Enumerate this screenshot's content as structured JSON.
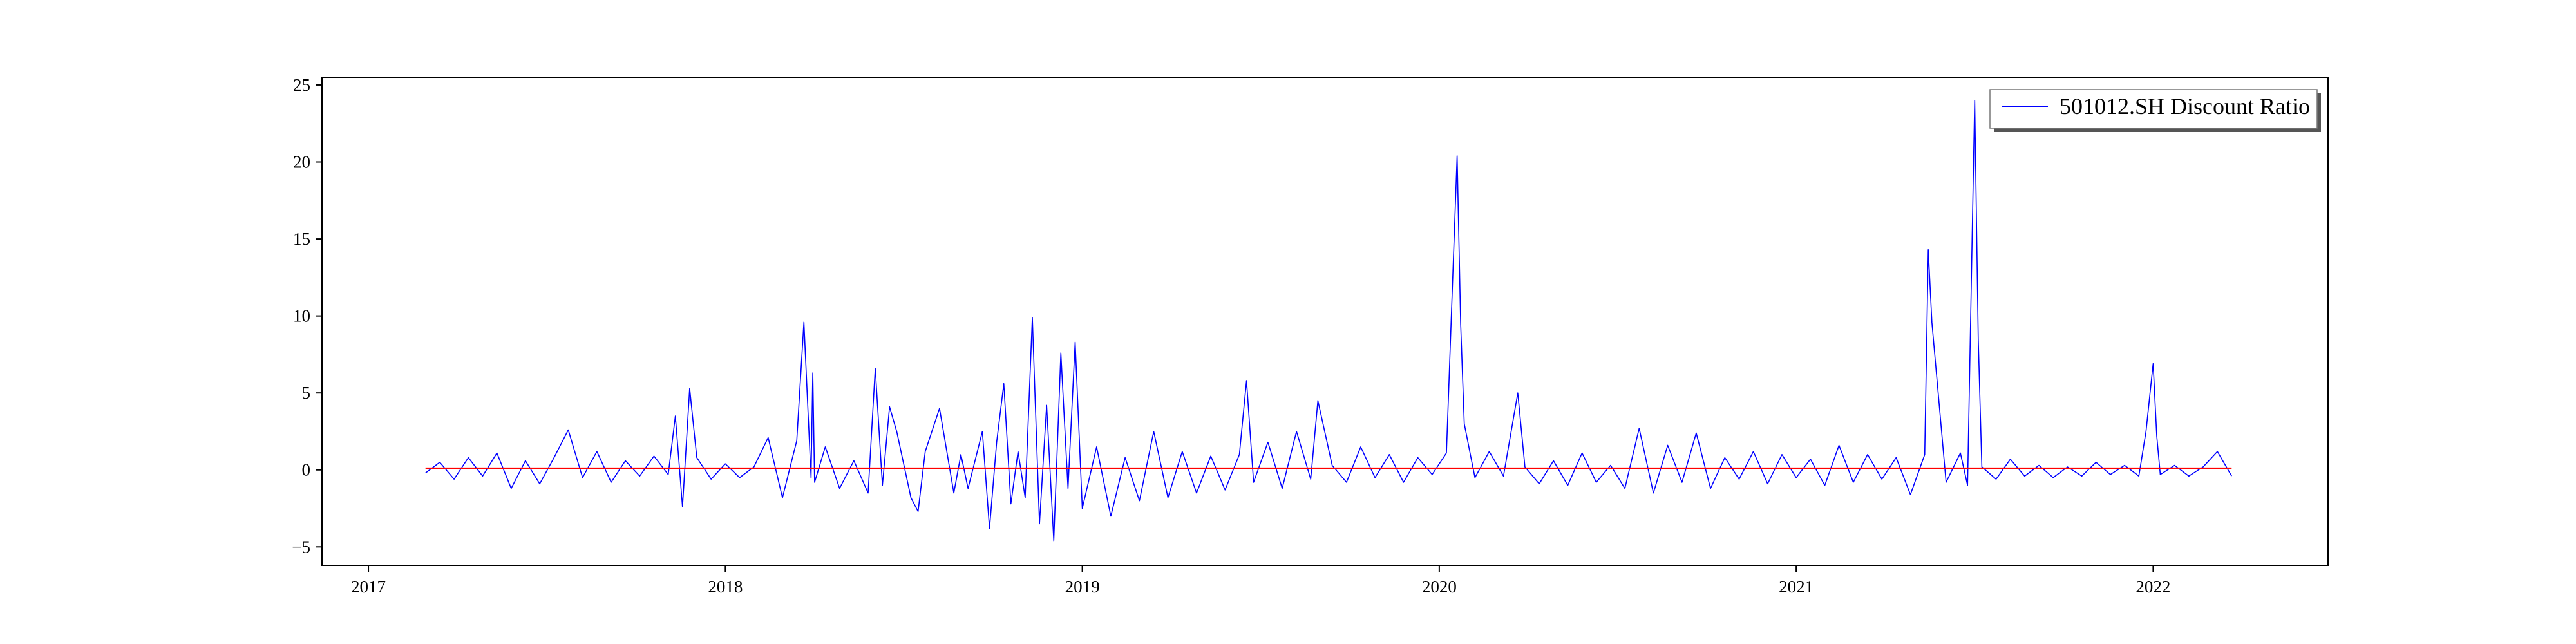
{
  "chart_data": {
    "type": "line",
    "title": "",
    "xlabel": "",
    "ylabel": "",
    "x_ticks": [
      "2017",
      "2018",
      "2019",
      "2020",
      "2021",
      "2022"
    ],
    "x_tick_years": [
      2017,
      2018,
      2019,
      2020,
      2021,
      2022
    ],
    "y_ticks": [
      -5,
      0,
      5,
      10,
      15,
      20,
      25
    ],
    "xlim": [
      2016.87,
      2022.49
    ],
    "ylim": [
      -6.2,
      25.5
    ],
    "grid": false,
    "legend": {
      "position": "top-right",
      "entries": [
        "501012.SH Discount Ratio"
      ]
    },
    "series": [
      {
        "name": "501012.SH Discount Ratio",
        "color": "#0000ff",
        "kind": "line",
        "x": [
          2017.16,
          2017.2,
          2017.24,
          2017.28,
          2017.32,
          2017.36,
          2017.4,
          2017.44,
          2017.48,
          2017.52,
          2017.56,
          2017.6,
          2017.64,
          2017.68,
          2017.72,
          2017.76,
          2017.8,
          2017.84,
          2017.86,
          2017.88,
          2017.9,
          2017.92,
          2017.96,
          2018.0,
          2018.04,
          2018.08,
          2018.12,
          2018.16,
          2018.2,
          2018.22,
          2018.24,
          2018.245,
          2018.25,
          2018.28,
          2018.32,
          2018.36,
          2018.4,
          2018.42,
          2018.44,
          2018.46,
          2018.48,
          2018.52,
          2018.54,
          2018.56,
          2018.6,
          2018.64,
          2018.66,
          2018.68,
          2018.72,
          2018.74,
          2018.76,
          2018.78,
          2018.8,
          2018.82,
          2018.84,
          2018.86,
          2018.88,
          2018.9,
          2018.92,
          2018.94,
          2018.96,
          2018.98,
          2019.0,
          2019.04,
          2019.08,
          2019.12,
          2019.16,
          2019.2,
          2019.24,
          2019.28,
          2019.32,
          2019.36,
          2019.4,
          2019.44,
          2019.46,
          2019.48,
          2019.52,
          2019.56,
          2019.6,
          2019.64,
          2019.66,
          2019.7,
          2019.74,
          2019.78,
          2019.82,
          2019.86,
          2019.9,
          2019.94,
          2019.98,
          2020.02,
          2020.05,
          2020.06,
          2020.07,
          2020.1,
          2020.14,
          2020.18,
          2020.22,
          2020.24,
          2020.28,
          2020.32,
          2020.36,
          2020.4,
          2020.44,
          2020.48,
          2020.52,
          2020.56,
          2020.6,
          2020.64,
          2020.68,
          2020.72,
          2020.76,
          2020.8,
          2020.84,
          2020.88,
          2020.92,
          2020.96,
          2021.0,
          2021.04,
          2021.08,
          2021.12,
          2021.16,
          2021.2,
          2021.24,
          2021.28,
          2021.32,
          2021.36,
          2021.37,
          2021.38,
          2021.42,
          2021.46,
          2021.48,
          2021.5,
          2021.51,
          2021.52,
          2021.56,
          2021.6,
          2021.64,
          2021.68,
          2021.72,
          2021.76,
          2021.8,
          2021.84,
          2021.88,
          2021.92,
          2021.96,
          2021.98,
          2022.0,
          2022.01,
          2022.02,
          2022.06,
          2022.1,
          2022.14,
          2022.18,
          2022.22
        ],
        "y": [
          -0.2,
          0.5,
          -0.6,
          0.8,
          -0.4,
          1.1,
          -1.2,
          0.6,
          -0.9,
          0.8,
          2.6,
          -0.5,
          1.2,
          -0.8,
          0.6,
          -0.4,
          0.9,
          -0.3,
          3.5,
          -2.4,
          5.3,
          0.8,
          -0.6,
          0.4,
          -0.5,
          0.2,
          2.1,
          -1.8,
          1.9,
          9.6,
          -0.5,
          6.3,
          -0.8,
          1.5,
          -1.2,
          0.6,
          -1.5,
          6.6,
          -1.0,
          4.1,
          2.5,
          -1.8,
          -2.7,
          1.2,
          4.0,
          -1.5,
          1.0,
          -1.2,
          2.5,
          -3.8,
          1.8,
          5.6,
          -2.2,
          1.2,
          -1.8,
          9.9,
          -3.5,
          4.2,
          -4.6,
          7.6,
          -1.2,
          8.3,
          -2.5,
          1.5,
          -3.0,
          0.8,
          -2.0,
          2.5,
          -1.8,
          1.2,
          -1.5,
          0.9,
          -1.3,
          1.0,
          5.8,
          -0.8,
          1.8,
          -1.2,
          2.5,
          -0.6,
          4.5,
          0.3,
          -0.8,
          1.5,
          -0.5,
          1.0,
          -0.8,
          0.8,
          -0.3,
          1.1,
          20.4,
          9.5,
          3.0,
          -0.5,
          1.2,
          -0.4,
          5.0,
          0.2,
          -0.9,
          0.6,
          -1.0,
          1.1,
          -0.8,
          0.3,
          -1.2,
          2.7,
          -1.5,
          1.6,
          -0.8,
          2.4,
          -1.2,
          0.8,
          -0.6,
          1.2,
          -0.9,
          1.0,
          -0.5,
          0.7,
          -1.0,
          1.6,
          -0.8,
          1.0,
          -0.6,
          0.8,
          -1.6,
          1.0,
          14.3,
          9.6,
          -0.8,
          1.1,
          -1.0,
          24.0,
          8.5,
          0.2,
          -0.6,
          0.7,
          -0.4,
          0.3,
          -0.5,
          0.2,
          -0.4,
          0.5,
          -0.3,
          0.3,
          -0.4,
          2.5,
          6.9,
          2.2,
          -0.3,
          0.3,
          -0.4,
          0.2,
          1.2,
          -0.4
        ]
      },
      {
        "name": "",
        "color": "#ff0000",
        "kind": "hline",
        "x": [
          2017.16,
          2022.22
        ],
        "y": [
          0.1,
          0.1
        ]
      }
    ]
  }
}
